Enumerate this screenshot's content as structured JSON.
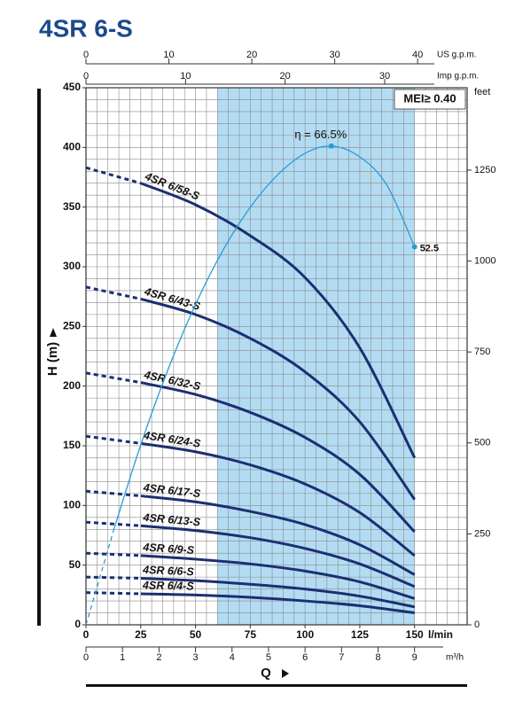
{
  "chart_data": {
    "type": "line",
    "title": "4SR 6-S",
    "xlabel": "Q",
    "x_unit": "l/min",
    "ylabel": "H (m)",
    "y2label": "feet",
    "annotation": "MEI≥ 0.40",
    "xlim": [
      0,
      174
    ],
    "xticks": [
      0,
      25,
      50,
      75,
      100,
      125,
      150
    ],
    "ylim": [
      0,
      450
    ],
    "yticks": [
      0,
      50,
      100,
      150,
      200,
      250,
      300,
      350,
      400,
      450
    ],
    "y2lim": [
      0,
      1476.4
    ],
    "y2ticks": [
      0,
      250,
      500,
      750,
      1000,
      1250
    ],
    "grid": true,
    "minor_grid": {
      "x": 5,
      "y": 10
    },
    "highlight_x": [
      60,
      150
    ],
    "highlight_color": "#b3dcf3",
    "secondary_x_axes": [
      {
        "label": "US g.p.m.",
        "xlim": [
          0,
          45.97
        ],
        "xticks": [
          0,
          10,
          20,
          30,
          40
        ]
      },
      {
        "label": "Imp g.p.m.",
        "xlim": [
          0,
          38.28
        ],
        "xticks": [
          0,
          10,
          20,
          30
        ]
      },
      {
        "label": "m³/h",
        "xlim": [
          0,
          10.44
        ],
        "xticks": [
          0,
          1,
          2,
          3,
          4,
          5,
          6,
          7,
          8,
          9
        ]
      }
    ],
    "x": [
      0,
      25,
      50,
      75,
      100,
      125,
      150
    ],
    "dashed_to_x": 25,
    "series": [
      {
        "name": "4SR 6/58-S",
        "color": "#1b2f72",
        "values": [
          383,
          370,
          352,
          326,
          291,
          232,
          140
        ]
      },
      {
        "name": "4SR 6/43-S",
        "color": "#1b2f72",
        "values": [
          283,
          273,
          260,
          240,
          212,
          170,
          105
        ]
      },
      {
        "name": "4SR 6/32-S",
        "color": "#1b2f72",
        "values": [
          211,
          203,
          193,
          178,
          157,
          126,
          78
        ]
      },
      {
        "name": "4SR 6/24-S",
        "color": "#1b2f72",
        "values": [
          158,
          152,
          145,
          134,
          118,
          94,
          58
        ]
      },
      {
        "name": "4SR 6/17-S",
        "color": "#1b2f72",
        "values": [
          112,
          108,
          103,
          95,
          84,
          67,
          42
        ]
      },
      {
        "name": "4SR 6/13-S",
        "color": "#1b2f72",
        "values": [
          86,
          83,
          79,
          73,
          64,
          51,
          32
        ]
      },
      {
        "name": "4SR 6/9-S",
        "color": "#1b2f72",
        "values": [
          60,
          58,
          55,
          51,
          45,
          36,
          22
        ]
      },
      {
        "name": "4SR 6/6-S",
        "color": "#1b2f72",
        "values": [
          40,
          39,
          37,
          34,
          30,
          24,
          15
        ]
      },
      {
        "name": "4SR 6/4-S",
        "color": "#1b2f72",
        "values": [
          27,
          26,
          25,
          23,
          20,
          16,
          10
        ]
      }
    ],
    "efficiency": {
      "color": "#2a9bd4",
      "ylim": [
        0,
        74.6
      ],
      "dashed_to_x": 12.5,
      "x": [
        0,
        12.5,
        25,
        37.5,
        50,
        62.5,
        75,
        87.5,
        100,
        112,
        125,
        137.5,
        150
      ],
      "values": [
        0,
        13,
        25,
        35.5,
        44.5,
        52,
        58,
        62.5,
        65.5,
        66.5,
        65,
        61,
        52.5
      ],
      "value_labels": [
        null,
        null,
        null,
        null,
        null,
        null,
        null,
        null,
        null,
        "η = 66.5%",
        null,
        null,
        "52.5"
      ]
    }
  }
}
